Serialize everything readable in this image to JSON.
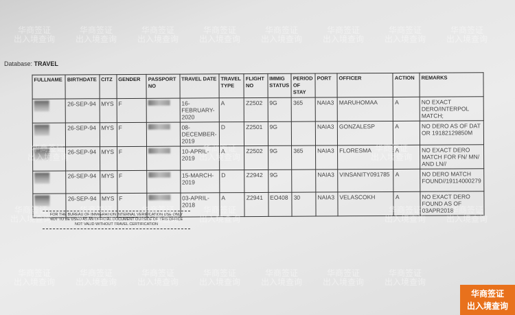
{
  "database_label": "Database:",
  "database_name": "TRAVEL",
  "columns": [
    "FULLNAME",
    "BIRTHDATE",
    "CITZ",
    "GENDER",
    "PASSPORT NO",
    "TRAVEL DATE",
    "TRAVEL TYPE",
    "FLIGHT NO",
    "IMMIG STATUS",
    "PERIOD OF STAY",
    "PORT",
    "OFFICER",
    "ACTION",
    "REMARKS"
  ],
  "rows": [
    {
      "birthdate": "26-SEP-94",
      "citz": "MYS",
      "gender": "F",
      "travel_date": "16-FEBRUARY-2020",
      "travel_type": "A",
      "flight_no": "Z2502",
      "immig_status": "9G",
      "period": "365",
      "port": "NAIA3",
      "officer": "MARUHOMAA",
      "action": "A",
      "remarks": "NO EXACT DERO/INTERPOL MATCH;"
    },
    {
      "birthdate": "26-SEP-94",
      "citz": "MYS",
      "gender": "F",
      "travel_date": "08-DECEMBER-2019",
      "travel_type": "D",
      "flight_no": "Z2501",
      "immig_status": "9G",
      "period": "",
      "port": "NAIA3",
      "officer": "GONZALESP",
      "action": "A",
      "remarks": "NO DERO AS OF DAT OR 19182129850M"
    },
    {
      "birthdate": "26-SEP-94",
      "citz": "MYS",
      "gender": "F",
      "travel_date": "10-APRIL-2019",
      "travel_type": "A",
      "flight_no": "Z2502",
      "immig_status": "9G",
      "period": "365",
      "port": "NAIA3",
      "officer": "FLORESMA",
      "action": "A",
      "remarks": "NO EXACT DERO MATCH FOR FN/ MN/ AND LN//"
    },
    {
      "birthdate": "26-SEP-94",
      "citz": "MYS",
      "gender": "F",
      "travel_date": "15-MARCH-2019",
      "travel_type": "D",
      "flight_no": "Z2942",
      "immig_status": "9G",
      "period": "",
      "port": "NAIA3",
      "officer": "VINSANITY091785",
      "action": "A",
      "remarks": "NO DERO MATCH FOUND//19114000279"
    },
    {
      "birthdate": "26-SEP-94",
      "citz": "MYS",
      "gender": "F",
      "travel_date": "03-APRIL-2018",
      "travel_type": "A",
      "flight_no": "Z2941",
      "immig_status": "EO408",
      "period": "30",
      "port": "NAIA3",
      "officer": "VELASCOKH",
      "action": "A",
      "remarks": "NO EXACT DERO FOUND AS OF 03APR2018"
    }
  ],
  "footer": [
    "FOR THE BUREAU OF IMMIGRATION INTERNAL VERIFICATION USE ONLY",
    "NOT TO BE USED AS AN OFFICIAL DOCUMENT OUTSIDE OF THIS OFFICE",
    "NOT VALID WITHOUT TRAVEL CERTIFICATION"
  ],
  "watermark": {
    "line1": "华商签证",
    "line2": "出入境查询"
  },
  "badge": {
    "line1": "华商签证",
    "line2": "出入境查询",
    "color": "#e8711c"
  }
}
